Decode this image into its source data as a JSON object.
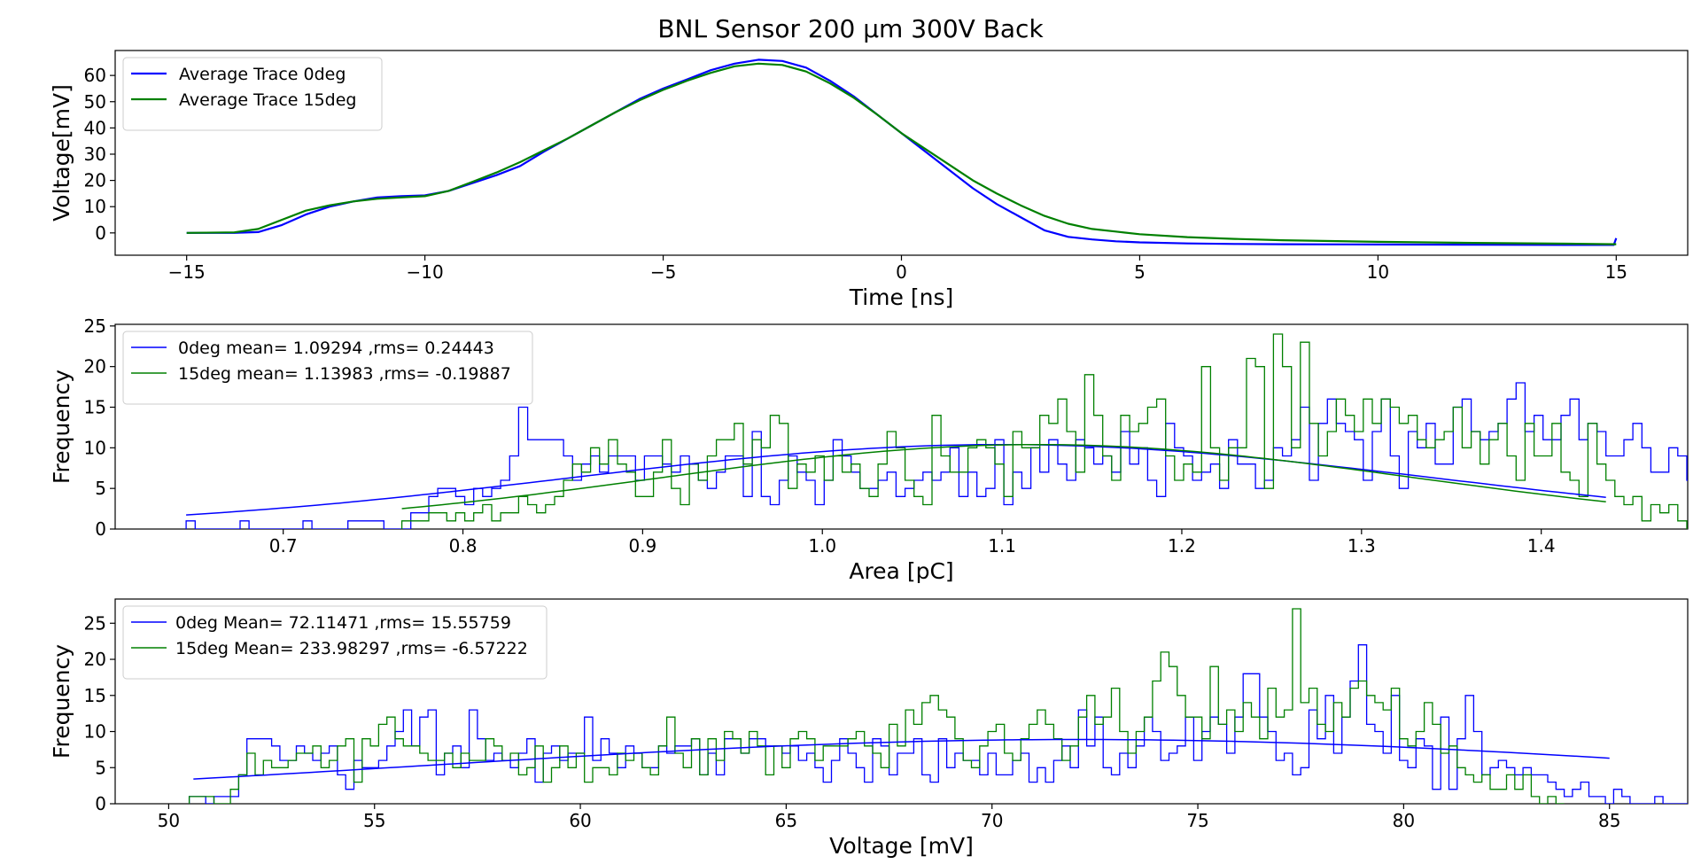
{
  "figure": {
    "title": "BNL Sensor 200 µm 300V Back"
  },
  "colors": {
    "blue": "#0000ff",
    "green": "#008000"
  },
  "chart_data": [
    {
      "type": "line",
      "xlabel": "Time [ns]",
      "ylabel": "Voltage[mV]",
      "xlim": [
        -16.5,
        16.5
      ],
      "ylim": [
        -8.5,
        69.5
      ],
      "xticks": [
        -15,
        -10,
        -5,
        0,
        5,
        10,
        15
      ],
      "xtick_labels": [
        "−15",
        "−10",
        "−5",
        "0",
        "5",
        "10",
        "15"
      ],
      "yticks": [
        0,
        10,
        20,
        30,
        40,
        50,
        60
      ],
      "ytick_labels": [
        "0",
        "10",
        "20",
        "30",
        "40",
        "50",
        "60"
      ],
      "legend_position": "upper-left",
      "series": [
        {
          "name": "Average Trace 0deg",
          "color": "#0000ff",
          "x": [
            -15,
            -14,
            -13.5,
            -13,
            -12.5,
            -12,
            -11.5,
            -11,
            -10.5,
            -10,
            -9.5,
            -9,
            -8.5,
            -8,
            -7.5,
            -7,
            -6.5,
            -6,
            -5.5,
            -5,
            -4.5,
            -4,
            -3.5,
            -3,
            -2.5,
            -2,
            -1.5,
            -1,
            -0.5,
            0,
            0.5,
            1,
            1.5,
            2,
            2.5,
            3,
            3.5,
            4,
            4.5,
            5,
            6,
            7,
            8,
            10,
            12,
            14,
            14.95,
            15
          ],
          "y": [
            0,
            0,
            0.3,
            3,
            7,
            10,
            12,
            13.5,
            14,
            14.3,
            16,
            19,
            22,
            25.5,
            31,
            36,
            41,
            46,
            51,
            55,
            58.5,
            62,
            64.5,
            66,
            65.5,
            63,
            58,
            52,
            45,
            38,
            31,
            24,
            17,
            11,
            6,
            1,
            -1.5,
            -2.5,
            -3.2,
            -3.6,
            -4,
            -4.2,
            -4.3,
            -4.4,
            -4.5,
            -4.6,
            -4.6,
            -2
          ]
        },
        {
          "name": "Average Trace 15deg",
          "color": "#008000",
          "x": [
            -15,
            -14,
            -13.5,
            -13,
            -12.5,
            -12,
            -11.5,
            -11,
            -10.5,
            -10,
            -9.5,
            -9,
            -8.5,
            -8,
            -7.5,
            -7,
            -6.5,
            -6,
            -5.5,
            -5,
            -4.5,
            -4,
            -3.5,
            -3,
            -2.5,
            -2,
            -1.5,
            -1,
            -0.5,
            0,
            0.5,
            1,
            1.5,
            2,
            2.5,
            3,
            3.5,
            4,
            4.5,
            5,
            6,
            7,
            8,
            10,
            12,
            14,
            15
          ],
          "y": [
            0,
            0.2,
            1.5,
            5,
            8.5,
            10.5,
            12,
            13,
            13.5,
            14,
            16,
            19.5,
            23,
            27,
            31.5,
            36,
            41,
            46,
            50.5,
            54.5,
            58,
            61,
            63.5,
            64.5,
            64,
            61.5,
            57,
            51.5,
            45,
            38,
            32,
            26,
            20,
            15,
            10.5,
            6.5,
            3.5,
            1.5,
            0.5,
            -0.5,
            -1.6,
            -2.3,
            -2.8,
            -3.4,
            -3.8,
            -4.1,
            -4.3
          ]
        }
      ]
    },
    {
      "type": "histogram",
      "xlabel": "Area [pC]",
      "ylabel": "Frequency",
      "xlim": [
        0.6065,
        1.4815
      ],
      "ylim": [
        0,
        25.2
      ],
      "xticks": [
        0.7,
        0.8,
        0.9,
        1.0,
        1.1,
        1.2,
        1.3,
        1.4
      ],
      "xtick_labels": [
        "0.7",
        "0.8",
        "0.9",
        "1.0",
        "1.1",
        "1.2",
        "1.3",
        "1.4"
      ],
      "yticks": [
        0,
        5,
        10,
        15,
        20,
        25
      ],
      "ytick_labels": [
        "0",
        "5",
        "10",
        "15",
        "20",
        "25"
      ],
      "legend_position": "upper-left",
      "series": [
        {
          "name": "0deg mean= 1.09294 ,rms= 0.24443",
          "color": "#0000ff",
          "bin_start": 0.646,
          "bin_width": 0.005,
          "counts": [
            1,
            0,
            0,
            0,
            0,
            0,
            1,
            0,
            0,
            0,
            0,
            0,
            0,
            1,
            0,
            0,
            0,
            0,
            1,
            1,
            1,
            1,
            0,
            0,
            0,
            2,
            2,
            4,
            5,
            5,
            4,
            3,
            5,
            4,
            5,
            6,
            9,
            15,
            11,
            11,
            11,
            11,
            9,
            6,
            8,
            9,
            7,
            9,
            9,
            9,
            6,
            9,
            9,
            8,
            7,
            9,
            8,
            6,
            5,
            7,
            9,
            9,
            4,
            12,
            4,
            3,
            6,
            9,
            7,
            6,
            3,
            6,
            11,
            9,
            7,
            5,
            5,
            6,
            7,
            4,
            5,
            6,
            7,
            6,
            7,
            10,
            4,
            7,
            4,
            5,
            11,
            3,
            7,
            5,
            10,
            7,
            11,
            8,
            6,
            11,
            10,
            8,
            9,
            7,
            12,
            8,
            10,
            6,
            4,
            13,
            10,
            9,
            6,
            7,
            8,
            5,
            11,
            8,
            8,
            5,
            6,
            10,
            9,
            11,
            15,
            6,
            13,
            16,
            13,
            12,
            11,
            6,
            12,
            16,
            9,
            5,
            12,
            10,
            13,
            8,
            8,
            15,
            16,
            12,
            11,
            12,
            13,
            16,
            18,
            12,
            14,
            11,
            11,
            14,
            16,
            11,
            13,
            12,
            9,
            9,
            11,
            13,
            10,
            7,
            7,
            10,
            9,
            6,
            4,
            6,
            5,
            2,
            3,
            3,
            2,
            3,
            1,
            2,
            1,
            0,
            1,
            1,
            0,
            1,
            0,
            1,
            0,
            1,
            0,
            1,
            1
          ]
        },
        {
          "name": "15deg mean= 1.13983 ,rms= -0.19887",
          "color": "#008000",
          "bin_start": 0.766,
          "bin_width": 0.005,
          "counts": [
            1,
            1,
            1,
            2,
            2,
            1,
            2,
            1,
            2,
            3,
            1,
            2,
            2,
            4,
            3,
            2,
            3,
            4,
            6,
            8,
            7,
            10,
            8,
            11,
            8,
            7,
            4,
            4,
            7,
            11,
            5,
            3,
            8,
            6,
            9,
            11,
            11,
            13,
            8,
            11,
            10,
            14,
            13,
            5,
            8,
            7,
            9,
            6,
            9,
            7,
            8,
            5,
            4,
            8,
            12,
            10,
            6,
            4,
            3,
            14,
            9,
            7,
            7,
            10,
            11,
            10,
            8,
            4,
            12,
            10,
            10,
            14,
            13,
            16,
            12,
            7,
            19,
            14,
            9,
            6,
            14,
            12,
            13,
            15,
            16,
            9,
            6,
            8,
            7,
            20,
            10,
            6,
            10,
            10,
            21,
            20,
            5,
            24,
            20,
            10,
            23,
            13,
            9,
            12,
            16,
            14,
            12,
            16,
            13,
            16,
            15,
            13,
            14,
            11,
            10,
            11,
            12,
            15,
            10,
            12,
            8,
            11,
            13,
            9,
            6,
            13,
            9,
            9,
            13,
            7,
            6,
            4,
            13,
            8,
            6,
            4,
            3,
            4,
            1,
            3,
            2,
            3,
            1,
            0,
            0,
            1,
            0,
            1,
            0,
            1
          ]
        }
      ],
      "fits": [
        {
          "color": "#0000ff",
          "x_range": [
            0.646,
            1.436
          ],
          "amplitude": 10.4,
          "mean": 1.1,
          "sigma": 0.24
        },
        {
          "color": "#008000",
          "x_range": [
            0.766,
            1.436
          ],
          "amplitude": 10.4,
          "mean": 1.12,
          "sigma": 0.21
        }
      ]
    },
    {
      "type": "histogram",
      "xlabel": "Voltage [mV]",
      "ylabel": "Frequency",
      "xlim": [
        48.7,
        86.9
      ],
      "ylim": [
        0,
        28.35
      ],
      "xticks": [
        50,
        55,
        60,
        65,
        70,
        75,
        80,
        85
      ],
      "xtick_labels": [
        "50",
        "55",
        "60",
        "65",
        "70",
        "75",
        "80",
        "85"
      ],
      "yticks": [
        0,
        5,
        10,
        15,
        20,
        25
      ],
      "ytick_labels": [
        "0",
        "5",
        "10",
        "15",
        "20",
        "25"
      ],
      "legend_position": "upper-left",
      "series": [
        {
          "name": "0deg Mean= 72.11471 ,rms= 15.55759",
          "color": "#0000ff",
          "bin_start": 50.5,
          "bin_width": 0.2,
          "counts": [
            1,
            1,
            0,
            1,
            1,
            1,
            4,
            9,
            9,
            9,
            8,
            6,
            6,
            8,
            7,
            6,
            7,
            8,
            4,
            2,
            6,
            5,
            5,
            6,
            8,
            10,
            13,
            8,
            12,
            13,
            4,
            7,
            8,
            5,
            13,
            9,
            6,
            7,
            6,
            5,
            7,
            9,
            3,
            7,
            8,
            6,
            7,
            7,
            12,
            6,
            9,
            7,
            5,
            8,
            7,
            5,
            5,
            8,
            7,
            8,
            8,
            9,
            4,
            7,
            4,
            9,
            9,
            7,
            9,
            9,
            8,
            8,
            7,
            8,
            6,
            7,
            5,
            3,
            6,
            9,
            7,
            5,
            3,
            9,
            8,
            4,
            7,
            7,
            9,
            4,
            3,
            9,
            5,
            7,
            6,
            6,
            4,
            7,
            4,
            4,
            6,
            7,
            3,
            5,
            3,
            6,
            8,
            5,
            13,
            8,
            12,
            5,
            4,
            7,
            5,
            8,
            12,
            10,
            6,
            7,
            8,
            12,
            6,
            10,
            12,
            11,
            7,
            12,
            18,
            18,
            12,
            10,
            6,
            7,
            4,
            5,
            13,
            9,
            15,
            7,
            12,
            17,
            22,
            11,
            10,
            7,
            15,
            6,
            5,
            9,
            8,
            2,
            12,
            2,
            9,
            15,
            10,
            4,
            5,
            6,
            5,
            4,
            5,
            4,
            4,
            3,
            2,
            1,
            2,
            3,
            1,
            1,
            0,
            2,
            1,
            0,
            0,
            0,
            1,
            0,
            0,
            0,
            0,
            1,
            0,
            1
          ]
        },
        {
          "name": "15deg Mean= 233.98297 ,rms= -6.57222",
          "color": "#008000",
          "bin_start": 50.5,
          "bin_width": 0.2,
          "counts": [
            1,
            1,
            1,
            0,
            0,
            2,
            4,
            7,
            4,
            6,
            5,
            5,
            6,
            7,
            7,
            8,
            5,
            6,
            8,
            9,
            3,
            9,
            8,
            11,
            12,
            9,
            8,
            8,
            7,
            6,
            6,
            7,
            5,
            7,
            6,
            6,
            9,
            8,
            6,
            7,
            4,
            5,
            8,
            3,
            5,
            8,
            5,
            7,
            3,
            5,
            5,
            4,
            7,
            6,
            7,
            5,
            4,
            8,
            12,
            7,
            5,
            9,
            4,
            9,
            6,
            10,
            9,
            7,
            10,
            8,
            4,
            8,
            5,
            9,
            10,
            9,
            6,
            8,
            8,
            8,
            9,
            10,
            8,
            7,
            5,
            11,
            8,
            13,
            11,
            14,
            15,
            13,
            12,
            9,
            6,
            5,
            8,
            10,
            11,
            7,
            6,
            9,
            11,
            13,
            11,
            9,
            6,
            8,
            12,
            15,
            11,
            12,
            16,
            10,
            7,
            10,
            12,
            17,
            21,
            19,
            15,
            12,
            12,
            9,
            19,
            11,
            13,
            10,
            14,
            12,
            9,
            16,
            12,
            13,
            27,
            14,
            16,
            11,
            10,
            14,
            12,
            16,
            17,
            15,
            14,
            13,
            16,
            9,
            8,
            10,
            14,
            11,
            7,
            8,
            5,
            4,
            3,
            4,
            2,
            2,
            4,
            2,
            4,
            1,
            0,
            1,
            0
          ]
        }
      ],
      "fits": [
        {
          "color": "#0000ff",
          "x_range": [
            50.6,
            85.0
          ],
          "amplitude": 8.9,
          "mean": 72.1,
          "sigma": 15.56
        }
      ]
    }
  ]
}
